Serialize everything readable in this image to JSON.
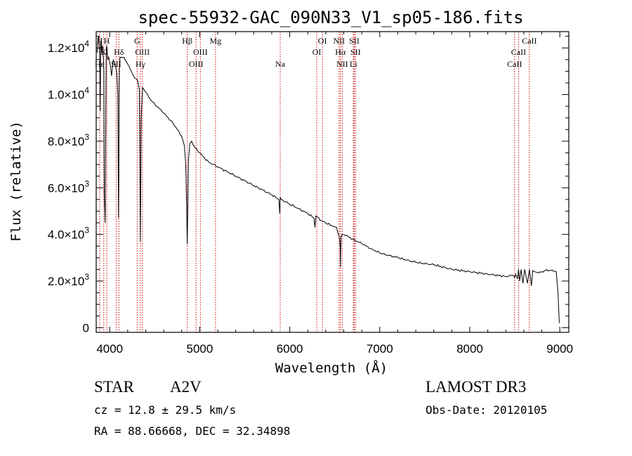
{
  "chart_data": {
    "type": "line",
    "title": "spec-55932-GAC_090N33_V1_sp05-186.fits",
    "xlabel": "Wavelength (Å)",
    "ylabel": "Flux (relative)",
    "xlim": [
      3850,
      9100
    ],
    "ylim": [
      -200,
      12700
    ],
    "x_ticks": [
      {
        "value": 4000,
        "label": "4000"
      },
      {
        "value": 5000,
        "label": "5000"
      },
      {
        "value": 6000,
        "label": "6000"
      },
      {
        "value": 7000,
        "label": "7000"
      },
      {
        "value": 8000,
        "label": "8000"
      },
      {
        "value": 9000,
        "label": "9000"
      }
    ],
    "y_ticks": [
      {
        "value": 0,
        "mant": "0",
        "exp": ""
      },
      {
        "value": 2000,
        "mant": "2.0×10",
        "exp": "3"
      },
      {
        "value": 4000,
        "mant": "4.0×10",
        "exp": "3"
      },
      {
        "value": 6000,
        "mant": "6.0×10",
        "exp": "3"
      },
      {
        "value": 8000,
        "mant": "8.0×10",
        "exp": "3"
      },
      {
        "value": 10000,
        "mant": "1.0×10",
        "exp": "4"
      },
      {
        "value": 12000,
        "mant": "1.2×10",
        "exp": "4"
      }
    ],
    "line_color": "#000000",
    "marker_color": "#cc0000",
    "series": [
      {
        "name": "flux",
        "x": [
          3860,
          3870,
          3880,
          3890,
          3895,
          3900,
          3905,
          3910,
          3915,
          3925,
          3935,
          3940,
          3950,
          3960,
          3965,
          3970,
          3975,
          3980,
          3990,
          4000,
          4010,
          4020,
          4040,
          4060,
          4080,
          4090,
          4095,
          4098,
          4101,
          4104,
          4108,
          4115,
          4130,
          4160,
          4200,
          4240,
          4280,
          4310,
          4330,
          4335,
          4338,
          4340,
          4342,
          4345,
          4350,
          4365,
          4400,
          4450,
          4500,
          4550,
          4600,
          4650,
          4700,
          4750,
          4800,
          4830,
          4845,
          4855,
          4861,
          4867,
          4875,
          4890,
          4910,
          4950,
          5000,
          5050,
          5100,
          5150,
          5200,
          5300,
          5400,
          5500,
          5600,
          5700,
          5800,
          5880,
          5889,
          5895,
          5905,
          6000,
          6100,
          6200,
          6270,
          6280,
          6290,
          6350,
          6450,
          6520,
          6550,
          6560,
          6563,
          6566,
          6570,
          6580,
          6600,
          6650,
          6700,
          6800,
          6900,
          7000,
          7200,
          7400,
          7600,
          7800,
          8000,
          8200,
          8400,
          8480,
          8500,
          8510,
          8530,
          8542,
          8555,
          8570,
          8590,
          8610,
          8640,
          8662,
          8685,
          8700,
          8720,
          8760,
          8800,
          8840,
          8900,
          8960,
          8980,
          8990,
          8995
        ],
        "y": [
          11800,
          12400,
          12500,
          11500,
          9300,
          12200,
          12300,
          11800,
          12100,
          12000,
          11000,
          5800,
          4500,
          11300,
          12100,
          12000,
          11700,
          11500,
          11600,
          11400,
          11200,
          10800,
          11500,
          11300,
          10900,
          10000,
          6600,
          4700,
          6500,
          9800,
          11200,
          11600,
          11600,
          11600,
          11300,
          11000,
          10700,
          10600,
          10200,
          7000,
          4900,
          3700,
          4700,
          6400,
          9000,
          10300,
          10100,
          9800,
          9600,
          9400,
          9200,
          9000,
          8800,
          8500,
          8200,
          7800,
          7000,
          5200,
          3600,
          5000,
          7200,
          7900,
          8000,
          7700,
          7500,
          7300,
          7100,
          7000,
          6900,
          6700,
          6500,
          6300,
          6100,
          5900,
          5700,
          5500,
          4900,
          5600,
          5500,
          5300,
          5100,
          4900,
          4700,
          4300,
          4800,
          4600,
          4400,
          4300,
          3900,
          3500,
          2600,
          3400,
          3900,
          4000,
          4000,
          3900,
          3800,
          3600,
          3400,
          3200,
          3000,
          2800,
          2700,
          2500,
          2400,
          2300,
          2200,
          2250,
          2150,
          2300,
          2100,
          2500,
          2000,
          2500,
          1900,
          2500,
          1900,
          2500,
          1800,
          2450,
          2400,
          2350,
          2400,
          2450,
          2450,
          2400,
          1500,
          600,
          200
        ]
      }
    ]
  },
  "line_markers": [
    {
      "label": "He",
      "wave": 3889,
      "row": 3
    },
    {
      "label": "H",
      "wave": 3889,
      "row": 1
    },
    {
      "label": "K",
      "wave": 3934,
      "row": 2
    },
    {
      "label": "H",
      "wave": 3968,
      "row": 1
    },
    {
      "label": "SII",
      "wave": 4072,
      "row": 3
    },
    {
      "label": "Hδ",
      "wave": 4102,
      "row": 2
    },
    {
      "label": "G",
      "wave": 4305,
      "row": 1
    },
    {
      "label": "Hγ",
      "wave": 4341,
      "row": 3
    },
    {
      "label": "OIII",
      "wave": 4363,
      "row": 2
    },
    {
      "label": "Hβ",
      "wave": 4861,
      "row": 1
    },
    {
      "label": "OIII",
      "wave": 4959,
      "row": 3
    },
    {
      "label": "OIII",
      "wave": 5007,
      "row": 2
    },
    {
      "label": "Mg",
      "wave": 5175,
      "row": 1
    },
    {
      "label": "Na",
      "wave": 5894,
      "row": 3
    },
    {
      "label": "OI",
      "wave": 6300,
      "row": 2
    },
    {
      "label": "OI",
      "wave": 6363,
      "row": 1
    },
    {
      "label": "NII",
      "wave": 6548,
      "row": 1
    },
    {
      "label": "NII",
      "wave": 6583,
      "row": 3
    },
    {
      "label": "Hα",
      "wave": 6563,
      "row": 2
    },
    {
      "label": "SII",
      "wave": 6717,
      "row": 1
    },
    {
      "label": "SII",
      "wave": 6731,
      "row": 2
    },
    {
      "label": "Li",
      "wave": 6707,
      "row": 3
    },
    {
      "label": "CaII",
      "wave": 8498,
      "row": 3
    },
    {
      "label": "CaII",
      "wave": 8542,
      "row": 2
    },
    {
      "label": "CaII",
      "wave": 8662,
      "row": 1
    }
  ],
  "info": {
    "class": "STAR",
    "subclass": "A2V",
    "cz": "cz = 12.8 ± 29.5 km/s",
    "coords": "RA =  88.66668, DEC =  32.34898",
    "survey": "LAMOST DR3",
    "obs_date": "Obs-Date: 20120105"
  }
}
